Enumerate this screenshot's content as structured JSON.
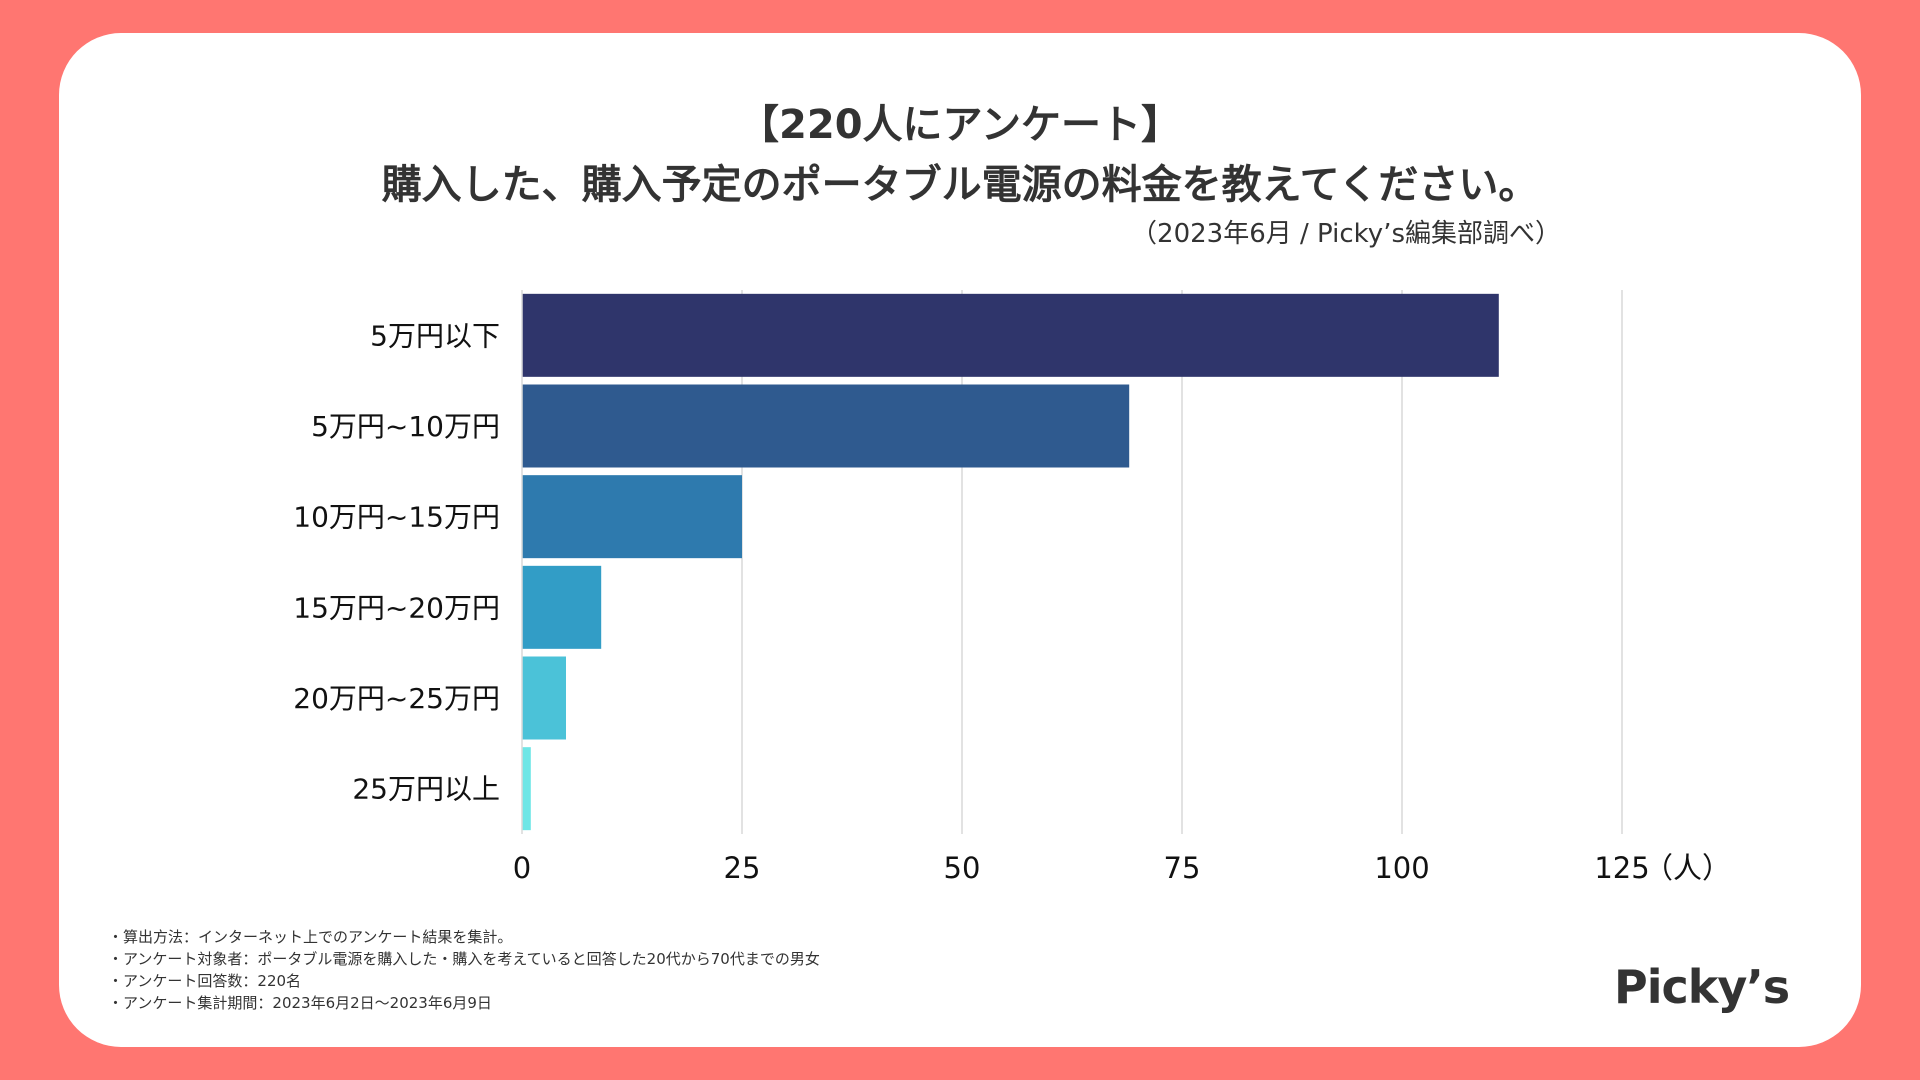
{
  "title_line1": "【220人にアンケート】",
  "title_line2": "購入した、購入予定のポータブル電源の料金を教えてください。",
  "subtitle": "（2023年6月 / Picky’s編集部調べ）",
  "chart_data": {
    "type": "bar",
    "orientation": "horizontal",
    "categories": [
      "5万円以下",
      "5万円~10万円",
      "10万円~15万円",
      "15万円~20万円",
      "20万円~25万円",
      "25万円以上"
    ],
    "values": [
      111,
      69,
      25,
      9,
      5,
      1
    ],
    "colors": [
      "#2f356b",
      "#2f5a8f",
      "#2e7aae",
      "#329dc6",
      "#4bc2d8",
      "#6ee6e6"
    ],
    "xlim": [
      0,
      125
    ],
    "xticks": [
      0,
      25,
      50,
      75,
      100,
      125
    ],
    "xunit": "（人）",
    "grid": true
  },
  "footnotes": [
    "・算出方法：インターネット上でのアンケート結果を集計。",
    "・アンケート対象者：ポータブル電源を購入した・購入を考えていると回答した20代から70代までの男女",
    "・アンケート回答数：220名",
    "・アンケート集計期間：2023年6月2日～2023年6月9日"
  ],
  "logo": "Picky’s",
  "colors": {
    "background": "#ff7671",
    "card": "#ffffff"
  }
}
